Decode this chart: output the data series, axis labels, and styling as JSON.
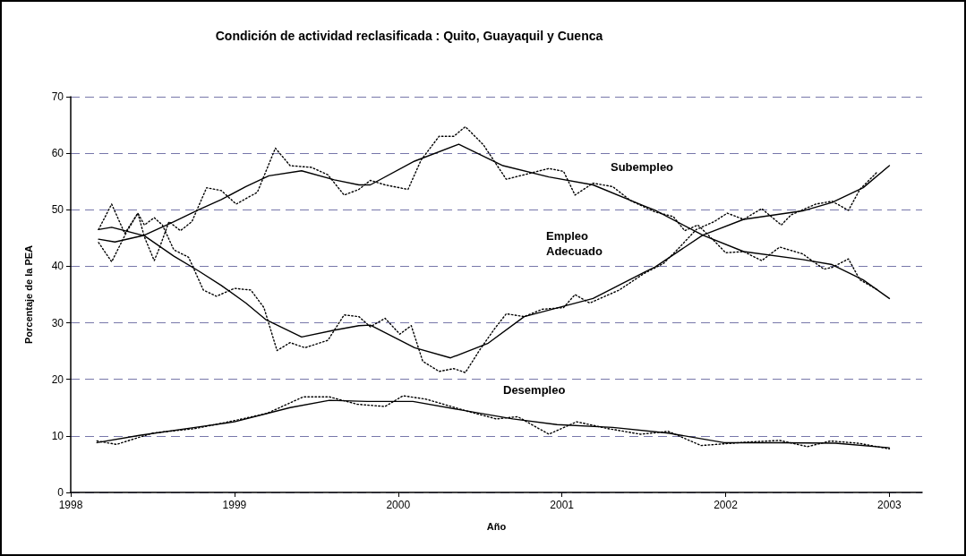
{
  "chart_data": {
    "type": "line",
    "title": "Condición de actividad reclasificada : Quito, Guayaquil y Cuenca",
    "xlabel": "Año",
    "ylabel": "Porcentaje de la PEA",
    "xlim": [
      1998,
      2003.2
    ],
    "xticks": [
      1998,
      1999,
      2000,
      2001,
      2002,
      2003
    ],
    "ylim": [
      0,
      70
    ],
    "yticks": [
      0,
      10,
      20,
      30,
      40,
      50,
      60,
      70
    ],
    "grid": "y",
    "marker": "none",
    "annotations": [
      "Subempleo",
      "Empleo\nAdecuado",
      "Desempleo"
    ],
    "series": [
      {
        "color": "#000000",
        "line_style": "solid",
        "x": [
          1998.17,
          1998.27,
          1998.45,
          1998.63,
          1998.78,
          1998.92,
          1999.07,
          1999.21,
          1999.41,
          1999.61,
          1999.76,
          1999.83,
          2000.1,
          2000.37,
          2000.64,
          2000.92,
          2001.19,
          2001.5,
          2001.57,
          2001.86,
          2002.11,
          2002.47,
          2002.65,
          2002.84,
          2003.0
        ],
        "values": [
          44.8,
          44.3,
          45.5,
          47.9,
          50,
          51.8,
          54.1,
          56,
          56.9,
          55.3,
          54.4,
          54.4,
          58.6,
          61.6,
          57.8,
          55.8,
          54.4,
          50.7,
          49.9,
          45.5,
          42.6,
          41.2,
          40.3,
          37.6,
          34.3
        ]
      },
      {
        "color": "#000000",
        "line_style": "dotted",
        "x": [
          1998.17,
          1998.25,
          1998.29,
          1998.34,
          1998.41,
          1998.45,
          1998.51,
          1998.54,
          1998.6,
          1998.67,
          1998.74,
          1998.83,
          1998.92,
          1999.01,
          1999.14,
          1999.25,
          1999.34,
          1999.47,
          1999.57,
          1999.67,
          1999.76,
          1999.83,
          1999.92,
          2000.06,
          2000.14,
          2000.25,
          2000.34,
          2000.41,
          2000.52,
          2000.66,
          2000.77,
          2000.92,
          2001.01,
          2001.08,
          2001.19,
          2001.31,
          2001.42,
          2001.57,
          2001.68,
          2001.75,
          2001.83,
          2001.93,
          2002.0,
          2002.11,
          2002.22,
          2002.33,
          2002.47,
          2002.6,
          2002.65,
          2002.75,
          2002.82,
          2002.93
        ],
        "values": [
          44.2,
          40.8,
          43.1,
          46,
          49.4,
          45.2,
          41,
          43.1,
          47.9,
          46.3,
          47.9,
          53.9,
          53.4,
          51,
          53.1,
          60.9,
          57.8,
          57.5,
          56.2,
          52.6,
          53.6,
          55.2,
          54.4,
          53.6,
          58.8,
          63,
          63,
          64.7,
          61.5,
          55.4,
          56.2,
          57.3,
          56.8,
          52.6,
          54.7,
          54.1,
          51.6,
          49.6,
          48.8,
          46.3,
          47.3,
          44.5,
          42.4,
          42.6,
          41,
          43.4,
          42.2,
          39.5,
          39.8,
          41.3,
          37.6,
          35.8
        ]
      },
      {
        "color": "#000000",
        "line_style": "solid",
        "x": [
          1998.17,
          1998.25,
          1998.45,
          1998.63,
          1998.78,
          1998.92,
          1999.07,
          1999.19,
          1999.41,
          1999.61,
          1999.76,
          1999.83,
          2000.1,
          2000.32,
          2000.55,
          2000.77,
          2001.19,
          2001.5,
          2001.57,
          2001.86,
          2002.11,
          2002.47,
          2002.65,
          2002.84,
          2003.0
        ],
        "values": [
          46.5,
          46.9,
          45.4,
          41.8,
          39.2,
          36.6,
          33.5,
          30.6,
          27.5,
          28.7,
          29.5,
          29.6,
          25.6,
          23.8,
          26.4,
          31.1,
          34.3,
          38.9,
          39.9,
          45.5,
          48.3,
          49.8,
          51.3,
          53.9,
          57.8
        ]
      },
      {
        "color": "#000000",
        "line_style": "dotted",
        "x": [
          1998.17,
          1998.25,
          1998.33,
          1998.41,
          1998.45,
          1998.51,
          1998.56,
          1998.63,
          1998.72,
          1998.81,
          1998.89,
          1999.0,
          1999.1,
          1999.18,
          1999.26,
          1999.34,
          1999.43,
          1999.57,
          1999.67,
          1999.76,
          1999.83,
          1999.92,
          2000.01,
          2000.08,
          2000.15,
          2000.25,
          2000.34,
          2000.41,
          2000.5,
          2000.59,
          2000.66,
          2000.77,
          2000.88,
          2001.01,
          2001.08,
          2001.17,
          2001.35,
          2001.5,
          2001.62,
          2001.71,
          2001.82,
          2001.93,
          2002.01,
          2002.11,
          2002.22,
          2002.34,
          2002.4,
          2002.55,
          2002.65,
          2002.75,
          2002.82,
          2002.93
        ],
        "values": [
          46.5,
          51,
          45.8,
          49.4,
          47.3,
          48.6,
          47.3,
          42.9,
          41.6,
          35.8,
          34.7,
          36.1,
          35.8,
          32.7,
          25.1,
          26.5,
          25.6,
          26.9,
          31.4,
          31.1,
          29.3,
          30.8,
          28,
          29.5,
          23.2,
          21.4,
          21.9,
          21.2,
          25.3,
          29,
          31.6,
          31.1,
          32.4,
          32.7,
          35,
          33.5,
          35.8,
          38.7,
          40.5,
          43.1,
          46.5,
          47.9,
          49.4,
          48.3,
          50.2,
          47.3,
          49.1,
          51,
          51.5,
          49.9,
          53.6,
          56.8
        ]
      },
      {
        "color": "#000000",
        "line_style": "solid",
        "x": [
          1998.16,
          1998.42,
          1998.76,
          1999.0,
          1999.34,
          1999.58,
          1999.81,
          2000.09,
          2000.36,
          2000.7,
          2000.97,
          2001.31,
          2001.65,
          2001.99,
          2002.33,
          2002.67,
          2003.0
        ],
        "values": [
          8.8,
          10.1,
          11.5,
          12.5,
          15,
          16.3,
          16.1,
          16.1,
          14.7,
          13,
          12,
          11.5,
          10.5,
          8.8,
          8.8,
          8.7,
          7.9
        ]
      },
      {
        "color": "#000000",
        "line_style": "dotted",
        "x": [
          1998.16,
          1998.28,
          1998.5,
          1998.76,
          1999.0,
          1999.2,
          1999.42,
          1999.58,
          1999.75,
          1999.92,
          2000.03,
          2000.17,
          2000.43,
          2000.6,
          2000.73,
          2000.92,
          2001.09,
          2001.28,
          2001.48,
          2001.65,
          2001.85,
          2002.13,
          2002.33,
          2002.5,
          2002.64,
          2002.81,
          2003.0
        ],
        "values": [
          9.1,
          8.5,
          10.5,
          11.3,
          12.7,
          14,
          16.9,
          16.9,
          15.6,
          15.2,
          17.1,
          16.5,
          14.3,
          13,
          13.4,
          10.3,
          12.5,
          11.3,
          10.3,
          10.8,
          8.3,
          8.9,
          9.2,
          8.1,
          9.1,
          8.7,
          7.7
        ]
      }
    ]
  }
}
